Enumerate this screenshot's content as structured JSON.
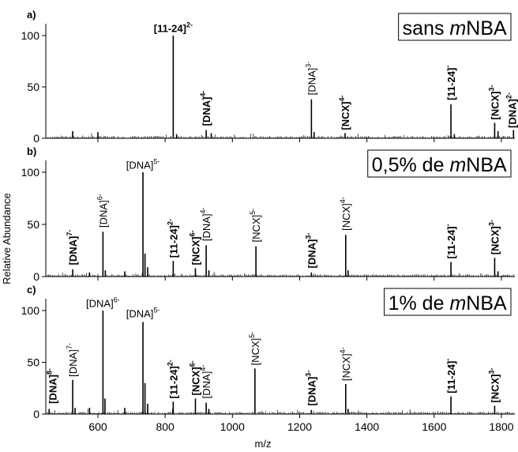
{
  "chart_data": {
    "type": "line",
    "xlabel": "m/z",
    "ylabel": "Relative Abundance",
    "xlim": [
      445,
      1840
    ],
    "x_ticks": [
      600,
      800,
      1000,
      1200,
      1400,
      1600,
      1800
    ],
    "y_ticks": [
      0,
      50,
      100
    ],
    "panels": [
      {
        "letter": "a)",
        "condition": {
          "prefix": "sans ",
          "italic": "m",
          "suffix": "NBA"
        },
        "ylim": [
          0,
          100
        ],
        "peaks": [
          {
            "x": 525,
            "y": 7
          },
          {
            "x": 600,
            "y": 6
          },
          {
            "x": 824,
            "y": 100
          },
          {
            "x": 834,
            "y": 4
          },
          {
            "x": 922,
            "y": 8
          },
          {
            "x": 937,
            "y": 5
          },
          {
            "x": 1235,
            "y": 38
          },
          {
            "x": 1243,
            "y": 6
          },
          {
            "x": 1335,
            "y": 5
          },
          {
            "x": 1650,
            "y": 33
          },
          {
            "x": 1660,
            "y": 4
          },
          {
            "x": 1780,
            "y": 15
          },
          {
            "x": 1790,
            "y": 7
          },
          {
            "x": 1836,
            "y": 8
          }
        ],
        "annotations": [
          {
            "main": "[11-24]",
            "sup": "2-",
            "bold": true,
            "x": 824,
            "y": 102,
            "vertical": false
          },
          {
            "main": "[DNA]",
            "sup": "4-",
            "bold": true,
            "x": 922,
            "y": 12,
            "vertical": true
          },
          {
            "main": "[DNA]",
            "sup": "3-",
            "bold": false,
            "x": 1235,
            "y": 42,
            "vertical": true
          },
          {
            "main": "[NCX]",
            "sup": "4-",
            "bold": true,
            "x": 1335,
            "y": 8,
            "vertical": true
          },
          {
            "main": "[11-24]",
            "sup": "-",
            "bold": true,
            "x": 1650,
            "y": 37,
            "vertical": true
          },
          {
            "main": "[NCX]",
            "sup": "3-",
            "bold": true,
            "x": 1780,
            "y": 18,
            "vertical": true
          },
          {
            "main": "[DNA]",
            "sup": "2-",
            "bold": true,
            "x": 1832,
            "y": 10,
            "vertical": true
          }
        ]
      },
      {
        "letter": "b)",
        "condition": {
          "prefix": "0,5% de ",
          "italic": "m",
          "suffix": "NBA"
        },
        "ylim": [
          0,
          100
        ],
        "peaks": [
          {
            "x": 525,
            "y": 7
          },
          {
            "x": 575,
            "y": 4
          },
          {
            "x": 615,
            "y": 43
          },
          {
            "x": 622,
            "y": 6
          },
          {
            "x": 680,
            "y": 5
          },
          {
            "x": 734,
            "y": 100
          },
          {
            "x": 740,
            "y": 22
          },
          {
            "x": 748,
            "y": 9
          },
          {
            "x": 824,
            "y": 15
          },
          {
            "x": 890,
            "y": 8
          },
          {
            "x": 922,
            "y": 30
          },
          {
            "x": 930,
            "y": 6
          },
          {
            "x": 1070,
            "y": 29
          },
          {
            "x": 1235,
            "y": 4
          },
          {
            "x": 1337,
            "y": 40
          },
          {
            "x": 1344,
            "y": 6
          },
          {
            "x": 1650,
            "y": 14
          },
          {
            "x": 1780,
            "y": 18
          },
          {
            "x": 1790,
            "y": 5
          }
        ],
        "annotations": [
          {
            "main": "[DNA]",
            "sup": "7-",
            "bold": true,
            "x": 525,
            "y": 11,
            "vertical": true
          },
          {
            "main": "[DNA]",
            "sup": "6-",
            "bold": false,
            "x": 615,
            "y": 47,
            "vertical": true
          },
          {
            "main": "[DNA]",
            "sup": "5-",
            "bold": false,
            "x": 734,
            "y": 102,
            "vertical": false
          },
          {
            "main": "[11-24]",
            "sup": "2-",
            "bold": true,
            "x": 824,
            "y": 18,
            "vertical": true
          },
          {
            "main": "[NCX]",
            "sup": "6-",
            "bold": true,
            "x": 890,
            "y": 11,
            "vertical": true
          },
          {
            "main": "[DNA]",
            "sup": "4-",
            "bold": false,
            "x": 922,
            "y": 34,
            "vertical": true
          },
          {
            "main": "[NCX]",
            "sup": "5-",
            "bold": false,
            "x": 1070,
            "y": 33,
            "vertical": true
          },
          {
            "main": "[DNA]",
            "sup": "3-",
            "bold": true,
            "x": 1235,
            "y": 8,
            "vertical": true
          },
          {
            "main": "[NCX]",
            "sup": "4-",
            "bold": false,
            "x": 1337,
            "y": 44,
            "vertical": true
          },
          {
            "main": "[11-24]",
            "sup": "-",
            "bold": true,
            "x": 1650,
            "y": 17,
            "vertical": true
          },
          {
            "main": "[NCX]",
            "sup": "3-",
            "bold": true,
            "x": 1780,
            "y": 21,
            "vertical": true
          }
        ]
      },
      {
        "letter": "c)",
        "condition": {
          "prefix": "1% de ",
          "italic": "m",
          "suffix": "NBA"
        },
        "ylim": [
          0,
          100
        ],
        "peaks": [
          {
            "x": 455,
            "y": 5
          },
          {
            "x": 525,
            "y": 33
          },
          {
            "x": 532,
            "y": 6
          },
          {
            "x": 575,
            "y": 6
          },
          {
            "x": 615,
            "y": 100
          },
          {
            "x": 621,
            "y": 15
          },
          {
            "x": 680,
            "y": 6
          },
          {
            "x": 734,
            "y": 89
          },
          {
            "x": 740,
            "y": 30
          },
          {
            "x": 748,
            "y": 10
          },
          {
            "x": 824,
            "y": 12
          },
          {
            "x": 890,
            "y": 15
          },
          {
            "x": 922,
            "y": 11
          },
          {
            "x": 930,
            "y": 5
          },
          {
            "x": 1067,
            "y": 44
          },
          {
            "x": 1235,
            "y": 4
          },
          {
            "x": 1337,
            "y": 29
          },
          {
            "x": 1344,
            "y": 5
          },
          {
            "x": 1650,
            "y": 17
          },
          {
            "x": 1780,
            "y": 8
          }
        ],
        "annotations": [
          {
            "main": "[DNA]",
            "sup": "8-",
            "bold": true,
            "x": 465,
            "y": 10,
            "vertical": true
          },
          {
            "main": "[DNA]",
            "sup": "7-",
            "bold": false,
            "x": 525,
            "y": 36,
            "vertical": true
          },
          {
            "main": "[DNA]",
            "sup": "6-",
            "bold": false,
            "x": 615,
            "y": 102,
            "vertical": false
          },
          {
            "main": "[DNA]",
            "sup": "5-",
            "bold": false,
            "x": 734,
            "y": 92,
            "vertical": false
          },
          {
            "main": "[11-24]",
            "sup": "2-",
            "bold": true,
            "x": 824,
            "y": 15,
            "vertical": true
          },
          {
            "main": "[NCX]",
            "sup": "6-",
            "bold": true,
            "x": 890,
            "y": 18,
            "vertical": true
          },
          {
            "main": "[DNA]",
            "sup": "4-",
            "bold": false,
            "x": 922,
            "y": 15,
            "vertical": true
          },
          {
            "main": "[NCX]",
            "sup": "5-",
            "bold": false,
            "x": 1067,
            "y": 47,
            "vertical": true
          },
          {
            "main": "[DNA]",
            "sup": "3-",
            "bold": true,
            "x": 1235,
            "y": 8,
            "vertical": true
          },
          {
            "main": "[NCX]",
            "sup": "4-",
            "bold": false,
            "x": 1337,
            "y": 32,
            "vertical": true
          },
          {
            "main": "[11-24]",
            "sup": "-",
            "bold": true,
            "x": 1650,
            "y": 20,
            "vertical": true
          },
          {
            "main": "[NCX]",
            "sup": "3-",
            "bold": true,
            "x": 1780,
            "y": 11,
            "vertical": true
          }
        ]
      }
    ]
  }
}
